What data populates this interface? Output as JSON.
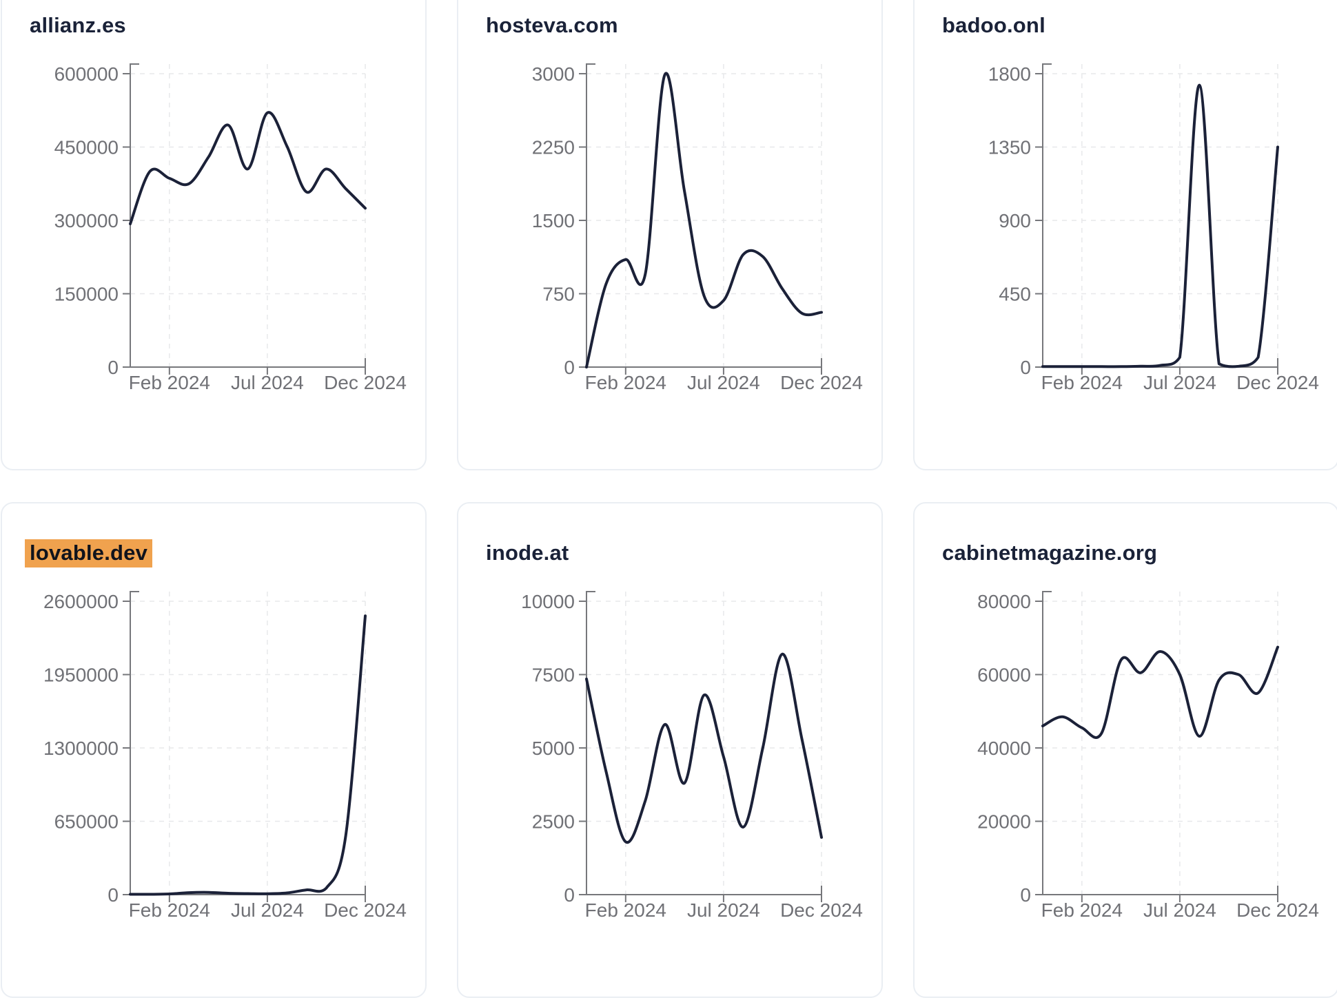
{
  "page": {
    "background_color": "#ffffff",
    "card_background": "#ffffff",
    "card_border_color": "#eaeef3"
  },
  "style": {
    "line_color": "#1b2138",
    "title_color": "#1a2238",
    "tick_label_color": "#707176",
    "axis_color": "#76777b",
    "grid_color": "#e7e8ea",
    "highlight_background": "#f0a24e",
    "highlight_text_color": "#10131c"
  },
  "x_axis": {
    "tick_labels": [
      "Feb 2024",
      "Jul 2024",
      "Dec 2024"
    ],
    "tick_month_positions": [
      2,
      7,
      12
    ],
    "months_domain": 12
  },
  "chart_data": [
    {
      "type": "line",
      "title": "allianz.es",
      "highlighted": false,
      "ylim": [
        0,
        600000
      ],
      "y_ticks": [
        0,
        150000,
        300000,
        450000,
        600000
      ],
      "x_months": [
        "Dec 2023",
        "Jan 2024",
        "Feb 2024",
        "Mar 2024",
        "Apr 2024",
        "May 2024",
        "Jun 2024",
        "Jul 2024",
        "Aug 2024",
        "Sep 2024",
        "Oct 2024",
        "Nov 2024",
        "Dec 2024"
      ],
      "values": [
        293000,
        400000,
        386000,
        375000,
        430000,
        495000,
        405000,
        520000,
        452000,
        358000,
        405000,
        365000,
        325000
      ]
    },
    {
      "type": "line",
      "title": "hosteva.com",
      "highlighted": false,
      "ylim": [
        0,
        3000
      ],
      "y_ticks": [
        0,
        750,
        1500,
        2250,
        3000
      ],
      "x_months": [
        "Dec 2023",
        "Jan 2024",
        "Feb 2024",
        "Mar 2024",
        "Apr 2024",
        "May 2024",
        "Jun 2024",
        "Jul 2024",
        "Aug 2024",
        "Sep 2024",
        "Oct 2024",
        "Nov 2024",
        "Dec 2024"
      ],
      "values": [
        0,
        850,
        1100,
        950,
        2990,
        1800,
        730,
        680,
        1150,
        1130,
        800,
        550,
        560
      ]
    },
    {
      "type": "line",
      "title": "badoo.onl",
      "highlighted": false,
      "ylim": [
        0,
        1800
      ],
      "y_ticks": [
        0,
        450,
        900,
        1350,
        1800
      ],
      "x_months": [
        "Dec 2023",
        "Jan 2024",
        "Feb 2024",
        "Mar 2024",
        "Apr 2024",
        "May 2024",
        "Jun 2024",
        "Jul 2024",
        "Aug 2024",
        "Sep 2024",
        "Oct 2024",
        "Nov 2024",
        "Dec 2024"
      ],
      "values": [
        3,
        3,
        3,
        3,
        3,
        5,
        10,
        60,
        1730,
        20,
        5,
        60,
        1350
      ]
    },
    {
      "type": "line",
      "title": "lovable.dev",
      "highlighted": true,
      "ylim": [
        0,
        2600000
      ],
      "y_ticks": [
        0,
        650000,
        1300000,
        1950000,
        2600000
      ],
      "x_months": [
        "Dec 2023",
        "Jan 2024",
        "Feb 2024",
        "Mar 2024",
        "Apr 2024",
        "May 2024",
        "Jun 2024",
        "Jul 2024",
        "Aug 2024",
        "Sep 2024",
        "Oct 2024",
        "Nov 2024",
        "Dec 2024"
      ],
      "values": [
        3000,
        3000,
        6000,
        18000,
        20000,
        12000,
        9000,
        8000,
        15000,
        42000,
        56000,
        520000,
        2470000
      ]
    },
    {
      "type": "line",
      "title": "inode.at",
      "highlighted": false,
      "ylim": [
        0,
        10000
      ],
      "y_ticks": [
        0,
        2500,
        5000,
        7500,
        10000
      ],
      "x_months": [
        "Dec 2023",
        "Jan 2024",
        "Feb 2024",
        "Mar 2024",
        "Apr 2024",
        "May 2024",
        "Jun 2024",
        "Jul 2024",
        "Aug 2024",
        "Sep 2024",
        "Oct 2024",
        "Nov 2024",
        "Dec 2024"
      ],
      "values": [
        7350,
        4200,
        1800,
        3200,
        5800,
        3800,
        6800,
        4700,
        2300,
        5000,
        8200,
        5300,
        1950
      ]
    },
    {
      "type": "line",
      "title": "cabinetmagazine.org",
      "highlighted": false,
      "ylim": [
        0,
        80000
      ],
      "y_ticks": [
        0,
        20000,
        40000,
        60000,
        80000
      ],
      "x_months": [
        "Dec 2023",
        "Jan 2024",
        "Feb 2024",
        "Mar 2024",
        "Apr 2024",
        "May 2024",
        "Jun 2024",
        "Jul 2024",
        "Aug 2024",
        "Sep 2024",
        "Oct 2024",
        "Nov 2024",
        "Dec 2024"
      ],
      "values": [
        46000,
        48500,
        45500,
        44000,
        64000,
        60500,
        66300,
        60000,
        43200,
        58500,
        60000,
        55000,
        67500
      ]
    }
  ]
}
